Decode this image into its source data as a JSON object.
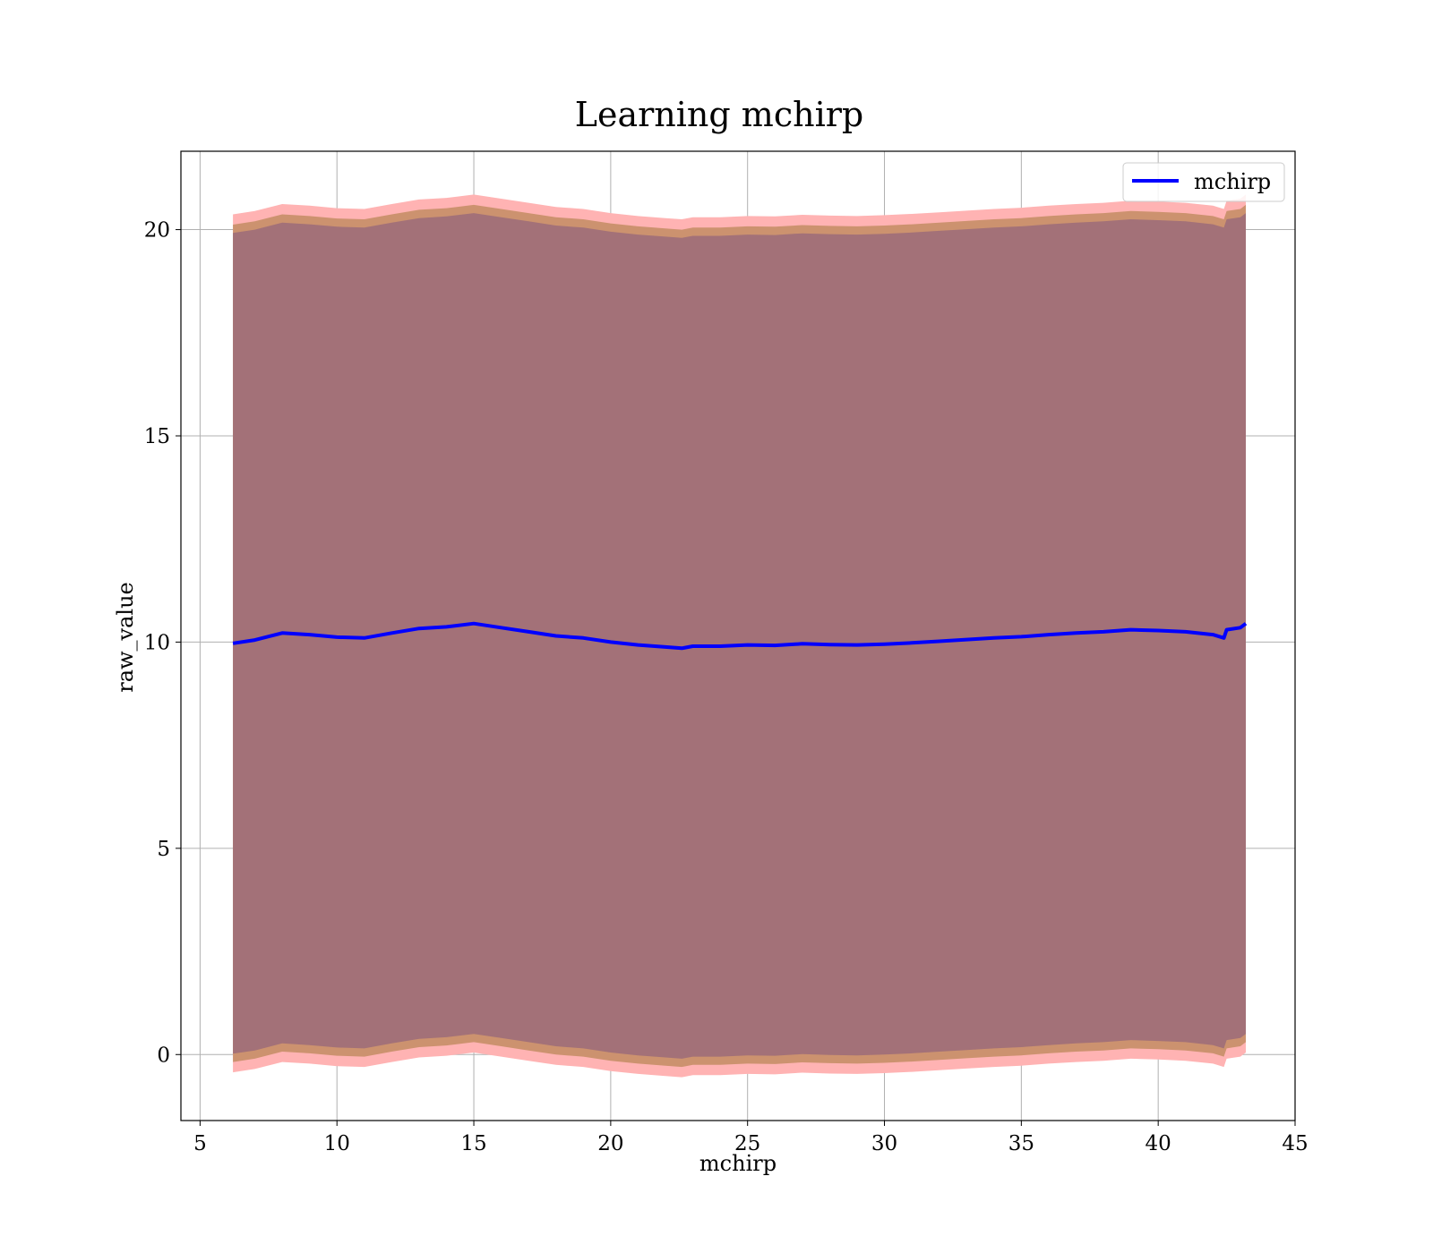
{
  "chart_data": {
    "type": "area",
    "title": "Learning mchirp",
    "xlabel": "mchirp",
    "ylabel": "raw_value",
    "xlim": [
      4.3,
      45
    ],
    "ylim": [
      -1.6,
      21.9
    ],
    "xticks": [
      5,
      10,
      15,
      20,
      25,
      30,
      35,
      40,
      45
    ],
    "yticks": [
      0,
      5,
      10,
      15,
      20
    ],
    "grid": true,
    "legend_position": "top-right",
    "colors": {
      "line": "#0000ff",
      "outer_band": "#ffb3b3",
      "mid_band": "#c9906b",
      "inner_band": "#a07078"
    },
    "x": [
      6.2,
      7,
      8,
      9,
      10,
      11,
      12,
      13,
      14,
      15,
      16,
      17,
      18,
      19,
      20,
      21,
      22,
      22.6,
      23,
      24,
      25,
      26,
      27,
      28,
      29,
      30,
      31,
      32,
      33,
      34,
      35,
      36,
      37,
      38,
      39,
      40,
      41,
      42,
      42.4,
      42.5,
      43,
      43.2
    ],
    "series": [
      {
        "name": "mchirp",
        "values": [
          9.97,
          10.05,
          10.22,
          10.18,
          10.12,
          10.1,
          10.22,
          10.33,
          10.37,
          10.45,
          10.35,
          10.25,
          10.15,
          10.1,
          10.0,
          9.93,
          9.88,
          9.85,
          9.9,
          9.9,
          9.93,
          9.92,
          9.96,
          9.94,
          9.93,
          9.95,
          9.98,
          10.02,
          10.06,
          10.1,
          10.13,
          10.18,
          10.22,
          10.25,
          10.3,
          10.28,
          10.25,
          10.18,
          10.1,
          10.3,
          10.35,
          10.45
        ]
      }
    ],
    "bands": [
      {
        "offset": 10.4,
        "color": "outer_band"
      },
      {
        "offset": 10.15,
        "color": "mid_band"
      },
      {
        "offset": 9.95,
        "color": "inner_band"
      }
    ]
  }
}
